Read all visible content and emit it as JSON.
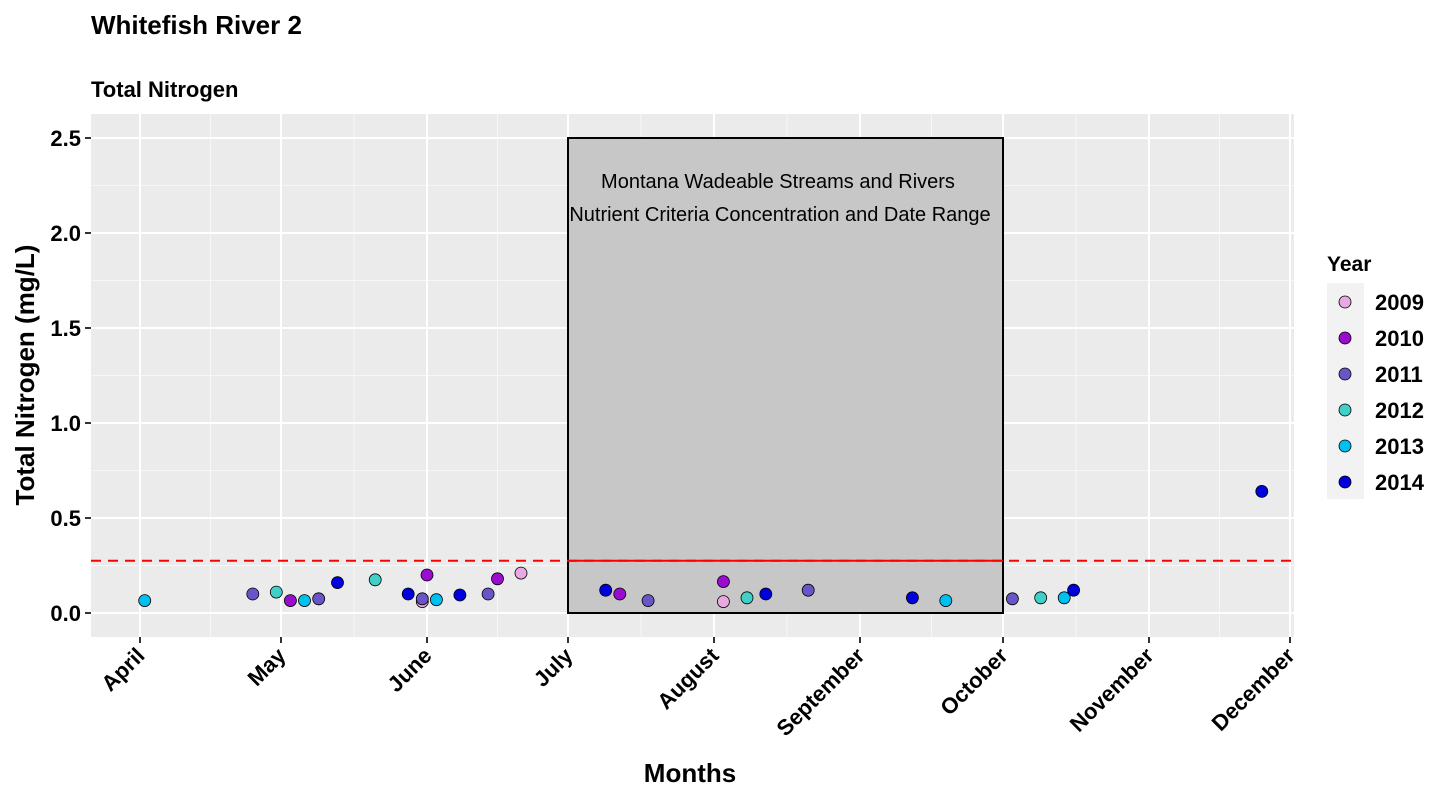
{
  "chart_data": {
    "type": "scatter",
    "title": "Whitefish River 2",
    "subtitle": "Total Nitrogen",
    "xlabel": "Months",
    "ylabel": "Total Nitrogen (mg/L)",
    "ylim": [
      0,
      2.5
    ],
    "y_ticks": [
      "0.0",
      "0.5",
      "1.0",
      "1.5",
      "2.0",
      "2.5"
    ],
    "x_ticks": [
      "April",
      "May",
      "June",
      "July",
      "August",
      "September",
      "October",
      "November",
      "December"
    ],
    "grid": true,
    "legend_title": "Year",
    "legend_position": "right",
    "threshold": {
      "value": 0.275,
      "color": "#ff0000"
    },
    "criteria_box": {
      "start": "July",
      "end": "October",
      "ymin": 0,
      "ymax": 2.5,
      "label_line1": "Montana Wadeable Streams and Rivers",
      "label_line2": "Nutrient Criteria Concentration and Date Range"
    },
    "series": [
      {
        "name": "2009",
        "color": "#e8a8e0",
        "points": [
          [
            "05-31",
            0.06
          ],
          [
            "06-21",
            0.21
          ],
          [
            "08-03",
            0.06
          ]
        ]
      },
      {
        "name": "2010",
        "color": "#9a0ccf",
        "points": [
          [
            "05-03",
            0.065
          ],
          [
            "06-01",
            0.2
          ],
          [
            "06-16",
            0.18
          ],
          [
            "07-12",
            0.1
          ],
          [
            "08-03",
            0.165
          ]
        ]
      },
      {
        "name": "2011",
        "color": "#6a55c8",
        "points": [
          [
            "04-25",
            0.1
          ],
          [
            "05-09",
            0.075
          ],
          [
            "05-31",
            0.075
          ],
          [
            "06-14",
            0.1
          ],
          [
            "07-18",
            0.065
          ],
          [
            "08-21",
            0.12
          ],
          [
            "10-03",
            0.075
          ]
        ]
      },
      {
        "name": "2012",
        "color": "#40d0c8",
        "points": [
          [
            "04-30",
            0.11
          ],
          [
            "05-21",
            0.175
          ],
          [
            "08-08",
            0.08
          ],
          [
            "10-09",
            0.08
          ]
        ]
      },
      {
        "name": "2013",
        "color": "#00c0f0",
        "points": [
          [
            "04-02",
            0.065
          ],
          [
            "05-06",
            0.065
          ],
          [
            "06-03",
            0.07
          ],
          [
            "09-19",
            0.065
          ],
          [
            "10-14",
            0.08
          ]
        ]
      },
      {
        "name": "2014",
        "color": "#0000dd",
        "points": [
          [
            "05-13",
            0.16
          ],
          [
            "05-28",
            0.1
          ],
          [
            "06-08",
            0.095
          ],
          [
            "07-09",
            0.12
          ],
          [
            "08-12",
            0.1
          ],
          [
            "09-12",
            0.08
          ],
          [
            "10-16",
            0.12
          ],
          [
            "11-25",
            0.64
          ]
        ]
      }
    ]
  }
}
